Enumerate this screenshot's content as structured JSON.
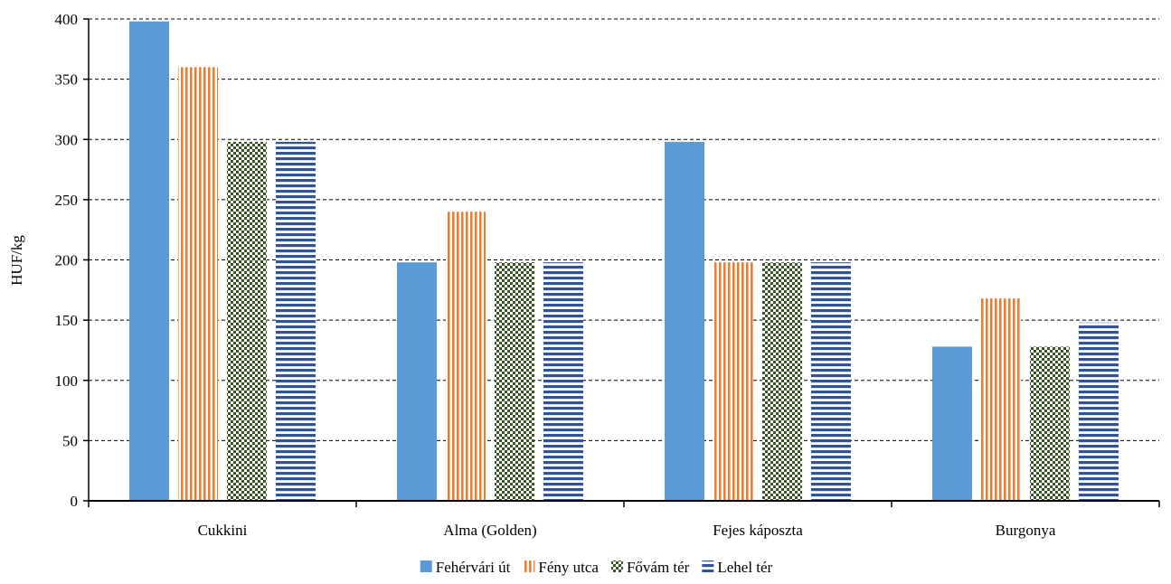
{
  "chart_data": {
    "type": "bar",
    "title": "",
    "xlabel": "",
    "ylabel": "HUF/kg",
    "ylim": [
      0,
      400
    ],
    "yticks": [
      0,
      50,
      100,
      150,
      200,
      250,
      300,
      350,
      400
    ],
    "grid": "horizontal dashed",
    "legend_position": "bottom",
    "categories": [
      "Cukkini",
      "Alma (Golden)",
      "Fejes káposzta",
      "Burgonya"
    ],
    "series": [
      {
        "name": "Fehérvári út",
        "color": "#5b9bd5",
        "pattern": "solid",
        "values": [
          398,
          198,
          298,
          128
        ]
      },
      {
        "name": "Fény utca",
        "color": "#ed7d31",
        "pattern": "vertical-stripes",
        "values": [
          360,
          240,
          198,
          168
        ]
      },
      {
        "name": "Fővám tér",
        "color": "#375623",
        "pattern": "checkerboard",
        "values": [
          298,
          198,
          198,
          128
        ]
      },
      {
        "name": "Lehel tér",
        "color": "#2f5597",
        "pattern": "horizontal-stripes",
        "values": [
          298,
          198,
          198,
          148
        ]
      }
    ]
  }
}
